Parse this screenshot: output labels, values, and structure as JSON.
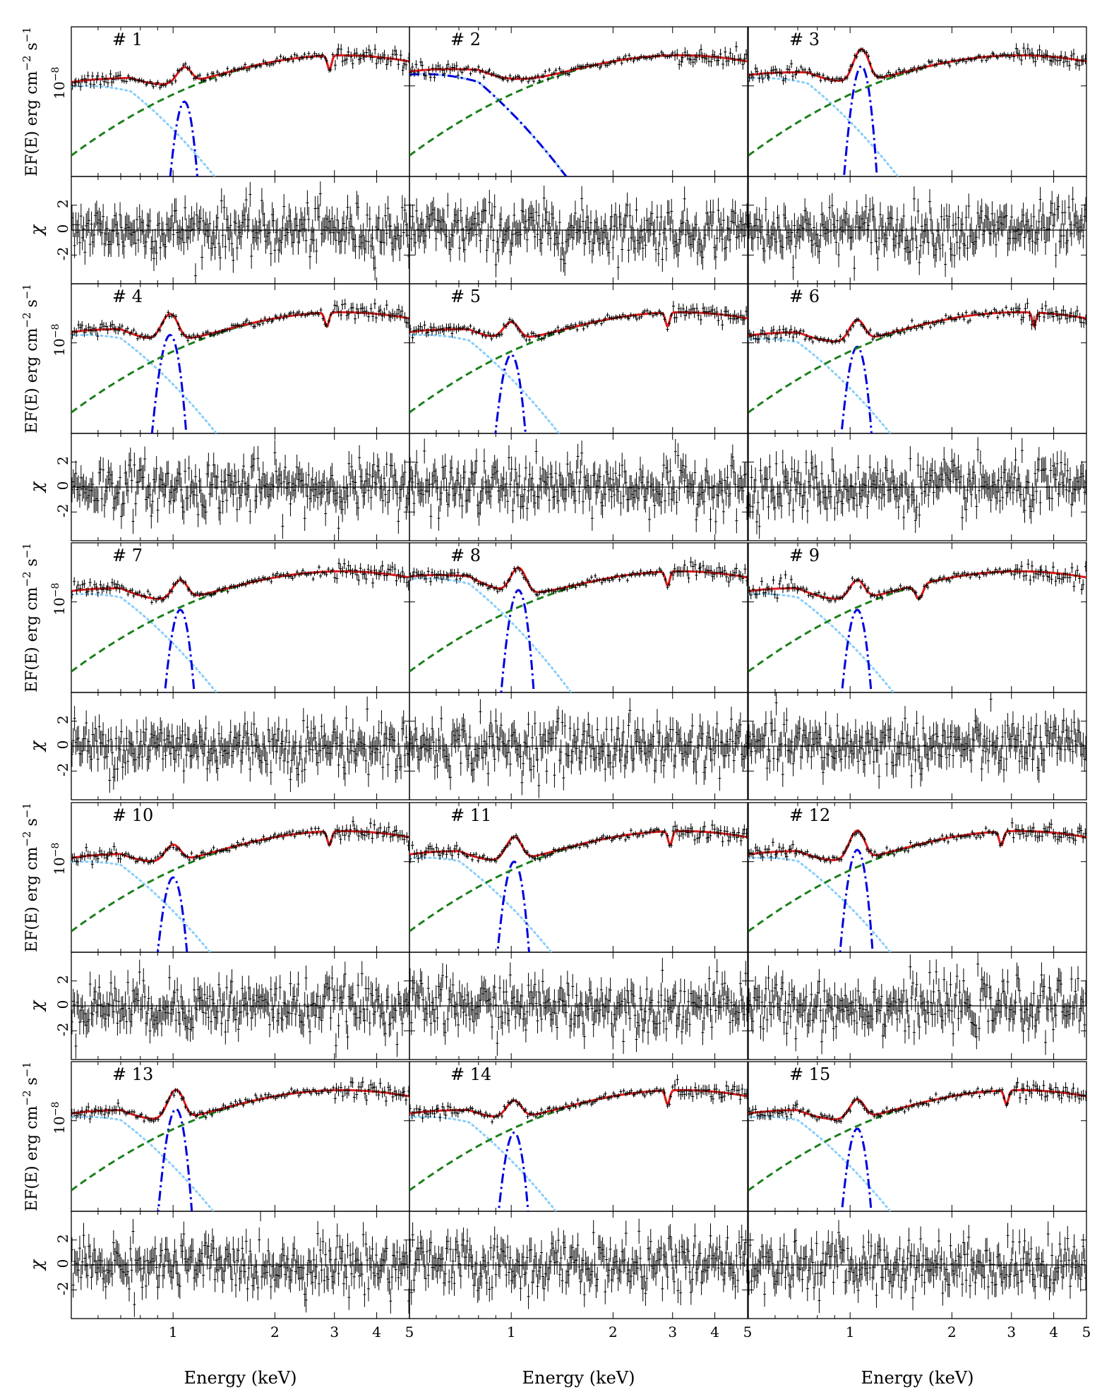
{
  "figure": {
    "ylabel_model": "EF(E) erg cm",
    "ylabel_model_sup1": "−2",
    "ylabel_model_mid": " s",
    "ylabel_model_sup2": "−1",
    "ylabel_resid": "χ",
    "xlabel": "Energy (keV)"
  },
  "chart_data": {
    "type": "line",
    "description_of_panels": "15 spectral fits arranged in 5 rows x 3 columns; each has a model panel (EF(E), log scale) and a residual panel (chi).",
    "x_axis": {
      "label": "Energy (keV)",
      "scale": "log",
      "range": [
        0.5,
        5
      ],
      "ticks": [
        1,
        2,
        3,
        4,
        5
      ],
      "tick_labels": [
        "1",
        "2",
        "3",
        "4",
        "5"
      ]
    },
    "y_axis_model": {
      "label": "EF(E) erg cm^-2 s^-1",
      "scale": "log",
      "tick_labels": [
        "10^-8"
      ]
    },
    "y_axis_resid": {
      "label": "χ",
      "range": [
        -4,
        4
      ],
      "ticks": [
        -2,
        0,
        2
      ],
      "tick_labels": [
        "-2",
        "0",
        "2"
      ]
    },
    "series_styles": [
      {
        "component": "total model",
        "color": "#e41a1c",
        "style": "solid"
      },
      {
        "component": "continuum (dashed)",
        "color": "#1a7f1a",
        "style": "dashed"
      },
      {
        "component": "soft component (dotted)",
        "color": "#87cefa",
        "style": "dotted"
      },
      {
        "component": "line component (dash-dot)",
        "color": "#0000dd",
        "style": "dashdot"
      },
      {
        "component": "data",
        "color": "#000000",
        "style": "errorbars"
      }
    ],
    "panels": [
      {
        "label": "# 1",
        "gauss_E": 1.08,
        "gauss_peak": -0.2,
        "soft_peak": 0.0,
        "soft_Ec": 0.75,
        "edge_E": 2.9
      },
      {
        "label": "# 2",
        "gauss_E": null,
        "gauss_peak": null,
        "soft_peak": 0.15,
        "soft_Ec": 0.8,
        "edge_E": null
      },
      {
        "label": "# 3",
        "gauss_E": 1.08,
        "gauss_peak": 0.25,
        "soft_peak": 0.1,
        "soft_Ec": 0.75,
        "edge_E": null
      },
      {
        "label": "# 4",
        "gauss_E": 0.98,
        "gauss_peak": 0.1,
        "soft_peak": 0.1,
        "soft_Ec": 0.7,
        "edge_E": 2.85
      },
      {
        "label": "# 5",
        "gauss_E": 1.0,
        "gauss_peak": -0.15,
        "soft_peak": 0.1,
        "soft_Ec": 0.75,
        "edge_E": 2.9
      },
      {
        "label": "# 6",
        "gauss_E": 1.05,
        "gauss_peak": -0.05,
        "soft_peak": 0.05,
        "soft_Ec": 0.7,
        "edge_E": 3.5
      },
      {
        "label": "# 7",
        "gauss_E": 1.05,
        "gauss_peak": -0.1,
        "soft_peak": 0.1,
        "soft_Ec": 0.7,
        "edge_E": null
      },
      {
        "label": "# 8",
        "gauss_E": 1.05,
        "gauss_peak": 0.15,
        "soft_peak": 0.3,
        "soft_Ec": 0.75,
        "edge_E": 2.9
      },
      {
        "label": "# 9",
        "gauss_E": 1.05,
        "gauss_peak": -0.1,
        "soft_peak": 0.1,
        "soft_Ec": 0.7,
        "edge_E": 1.6
      },
      {
        "label": "# 10",
        "gauss_E": 1.0,
        "gauss_peak": -0.2,
        "soft_peak": 0.0,
        "soft_Ec": 0.7,
        "edge_E": 2.9
      },
      {
        "label": "# 11",
        "gauss_E": 1.02,
        "gauss_peak": 0.0,
        "soft_peak": 0.05,
        "soft_Ec": 0.7,
        "edge_E": 2.95
      },
      {
        "label": "# 12",
        "gauss_E": 1.05,
        "gauss_peak": 0.15,
        "soft_peak": 0.05,
        "soft_Ec": 0.7,
        "edge_E": 2.8
      },
      {
        "label": "# 13",
        "gauss_E": 1.02,
        "gauss_peak": 0.15,
        "soft_peak": 0.05,
        "soft_Ec": 0.7,
        "edge_E": null
      },
      {
        "label": "# 14",
        "gauss_E": 1.02,
        "gauss_peak": -0.15,
        "soft_peak": 0.05,
        "soft_Ec": 0.75,
        "edge_E": 2.9
      },
      {
        "label": "# 15",
        "gauss_E": 1.05,
        "gauss_peak": -0.1,
        "soft_peak": 0.05,
        "soft_Ec": 0.7,
        "edge_E": 2.9
      }
    ]
  }
}
